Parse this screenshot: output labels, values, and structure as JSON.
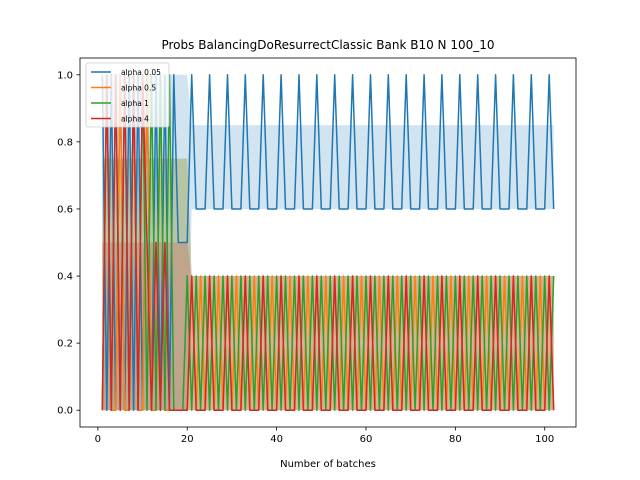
{
  "chart_data": {
    "type": "line",
    "title": "Probs BalancingDoResurrectClassic Bank B10 N 100_10",
    "xlabel": "Number of batches",
    "ylabel": "",
    "xlim": [
      -4,
      107
    ],
    "ylim": [
      -0.05,
      1.05
    ],
    "x_ticks": [
      0,
      20,
      40,
      60,
      80,
      100
    ],
    "y_ticks": [
      0.0,
      0.2,
      0.4,
      0.6,
      0.8,
      1.0
    ],
    "x_tick_labels": [
      "0",
      "20",
      "40",
      "60",
      "80",
      "100"
    ],
    "y_tick_labels": [
      "0.0",
      "0.2",
      "0.4",
      "0.6",
      "0.8",
      "1.0"
    ],
    "grid": false,
    "legend_position": "top-left",
    "series": [
      {
        "name": "alpha 0.05",
        "color": "#1f77b4",
        "band": {
          "early_upper": 1.0,
          "early_lower": 0.0,
          "late_upper": 0.85,
          "late_lower": 0.6
        },
        "segments": [
          {
            "x_start": 1,
            "x_end": 16,
            "period": 2,
            "values": [
              1.0,
              0.0
            ]
          },
          {
            "x_start": 17,
            "x_end": 17,
            "period": 1,
            "values": [
              1.0
            ]
          },
          {
            "x_start": 18,
            "x_end": 20,
            "period": 1,
            "values": [
              0.5,
              0.5,
              0.6
            ]
          },
          {
            "x_start": 21,
            "x_end": 102,
            "period": 4,
            "values": [
              1.0,
              0.6,
              0.6,
              0.6
            ]
          }
        ]
      },
      {
        "name": "alpha 0.5",
        "color": "#ff7f0e",
        "band": {
          "early_upper": 0.75,
          "early_lower": 0.0,
          "late_upper": 0.4,
          "late_lower": 0.0
        },
        "segments": [
          {
            "x_start": 1,
            "x_end": 16,
            "period": 3,
            "values": [
              0.0,
              1.0,
              0.0
            ]
          },
          {
            "x_start": 17,
            "x_end": 19,
            "period": 1,
            "values": [
              0.0,
              0.5,
              0.0
            ]
          },
          {
            "x_start": 20,
            "x_end": 102,
            "period": 2,
            "values": [
              0.0,
              0.4
            ]
          }
        ]
      },
      {
        "name": "alpha 1",
        "color": "#2ca02c",
        "band": {
          "early_upper": 0.75,
          "early_lower": 0.0,
          "late_upper": 0.4,
          "late_lower": 0.0
        },
        "segments": [
          {
            "x_start": 1,
            "x_end": 16,
            "period": 2,
            "values": [
              0.0,
              1.0
            ]
          },
          {
            "x_start": 17,
            "x_end": 19,
            "period": 1,
            "values": [
              0.0,
              0.0,
              0.0
            ]
          },
          {
            "x_start": 20,
            "x_end": 102,
            "period": 2,
            "values": [
              0.4,
              0.0
            ]
          }
        ]
      },
      {
        "name": "alpha 4",
        "color": "#d62728",
        "band": {
          "early_upper": 0.5,
          "early_lower": 0.0,
          "late_upper": 0.4,
          "late_lower": 0.0
        },
        "segments": [
          {
            "x_start": 1,
            "x_end": 10,
            "period": 2,
            "values": [
              0.0,
              1.0
            ]
          },
          {
            "x_start": 11,
            "x_end": 16,
            "period": 2,
            "values": [
              0.5,
              0.0
            ]
          },
          {
            "x_start": 17,
            "x_end": 19,
            "period": 1,
            "values": [
              0.0,
              0.0,
              0.0
            ]
          },
          {
            "x_start": 20,
            "x_end": 102,
            "period": 4,
            "values": [
              0.0,
              0.4,
              0.0,
              0.0
            ]
          }
        ]
      }
    ]
  }
}
